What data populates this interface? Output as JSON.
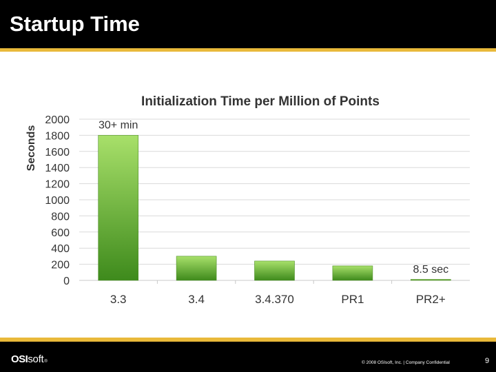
{
  "slide": {
    "title": "Startup Time",
    "page_number": "9",
    "copyright": "© 2008 OSIsoft, Inc.  |  Company Confidential",
    "logo": {
      "strong": "OSI",
      "light": "soft",
      "mark": "®"
    }
  },
  "colors": {
    "header_background": "#000000",
    "accent_rule": "#e9b93a",
    "bar_top": "#a8e06a",
    "bar_bottom": "#3e8a1c",
    "gridline": "#d9d9d9",
    "text": "#333333"
  },
  "chart_data": {
    "type": "bar",
    "title": "Initialization Time per Million of Points",
    "xlabel": "",
    "ylabel": "Seconds",
    "categories": [
      "3.3",
      "3.4",
      "3.4.370",
      "PR1",
      "PR2+"
    ],
    "values": [
      1800,
      300,
      240,
      180,
      8.5
    ],
    "ylim": [
      0,
      2000
    ],
    "yticks": [
      0,
      200,
      400,
      600,
      800,
      1000,
      1200,
      1400,
      1600,
      1800,
      2000
    ],
    "grid": true,
    "legend": "none",
    "annotations": [
      {
        "category": "3.3",
        "text": "30+ min"
      },
      {
        "category": "PR2+",
        "text": "8.5 sec"
      }
    ]
  }
}
